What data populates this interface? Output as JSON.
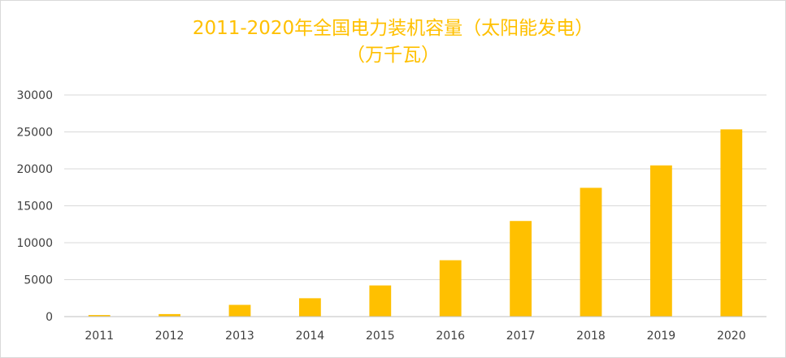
{
  "chart_data": {
    "type": "bar",
    "title_line1": "2011-2020年全国电力装机容量（太阳能发电）",
    "title_line2": "（万千瓦）",
    "categories": [
      "2011",
      "2012",
      "2013",
      "2014",
      "2015",
      "2016",
      "2017",
      "2018",
      "2019",
      "2020"
    ],
    "values": [
      212,
      341,
      1589,
      2486,
      4218,
      7631,
      12942,
      17433,
      20468,
      25343
    ],
    "ylim": [
      0,
      30000
    ],
    "yticks": [
      "0",
      "5000",
      "10000",
      "15000",
      "20000",
      "25000",
      "30000"
    ],
    "grid": true,
    "legend": "none",
    "bar_color": "#ffc000"
  }
}
